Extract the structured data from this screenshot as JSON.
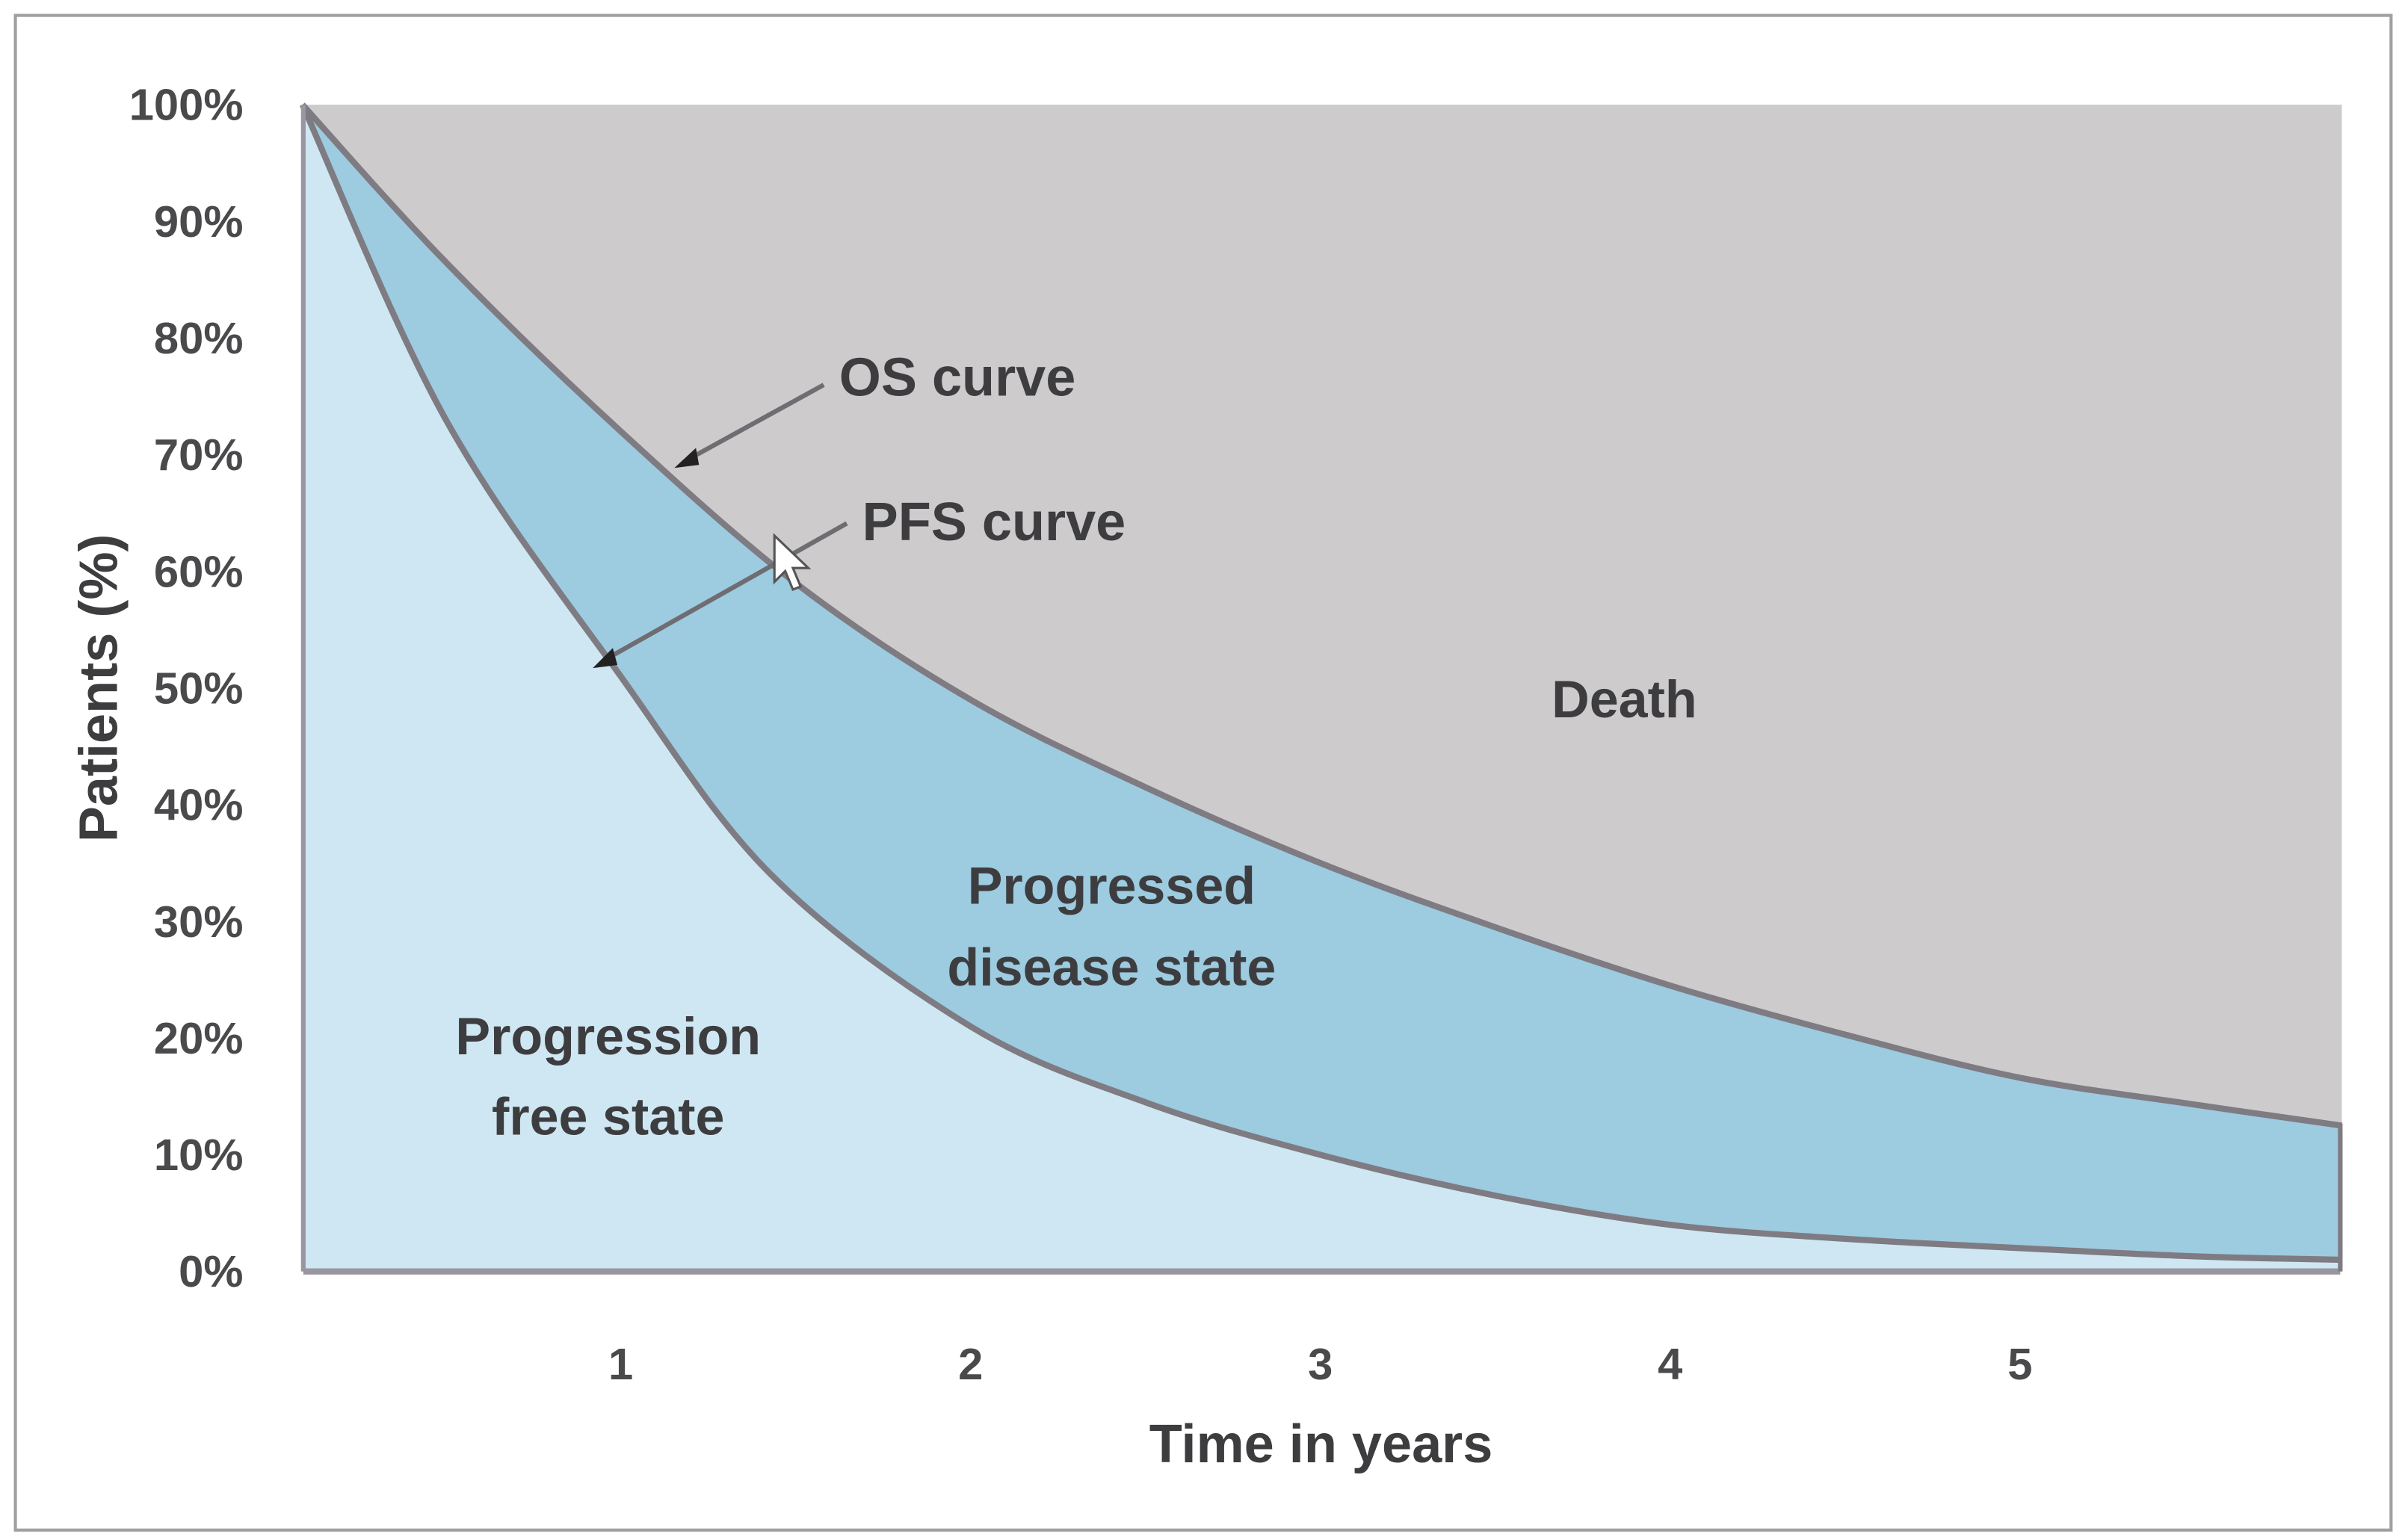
{
  "chart_data": {
    "type": "area",
    "title": "",
    "xlabel": "Time in years",
    "ylabel": "Patients (%)",
    "xlim": [
      0,
      5.92
    ],
    "ylim": [
      0,
      100
    ],
    "x_ticks": [
      1,
      2,
      3,
      4,
      5
    ],
    "y_ticks": [
      "0%",
      "10%",
      "20%",
      "30%",
      "40%",
      "50%",
      "60%",
      "70%",
      "80%",
      "90%",
      "100%"
    ],
    "grid": false,
    "series": [
      {
        "name": "OS curve",
        "x": [
          0.09,
          0.5,
          1,
          1.5,
          2,
          2.5,
          3,
          3.5,
          4,
          4.5,
          5,
          5.5,
          5.92
        ],
        "y": [
          100,
          86.5,
          72,
          59,
          49,
          41.5,
          35,
          29.5,
          24.5,
          20.3,
          16.6,
          14.3,
          12.5
        ]
      },
      {
        "name": "PFS curve",
        "x": [
          0.09,
          0.5,
          1,
          1.43,
          2,
          2.5,
          3,
          3.5,
          4,
          4.5,
          5,
          5.5,
          5.92
        ],
        "y": [
          100,
          73,
          51,
          34,
          21,
          14.5,
          10,
          6.5,
          4,
          2.8,
          2,
          1.3,
          1
        ]
      }
    ],
    "regions": {
      "death": "Death",
      "progressed": [
        "Progressed",
        "disease state"
      ],
      "progression_free": [
        "Progression",
        "free state"
      ]
    },
    "annotations": {
      "os": "OS curve",
      "pfs": "PFS curve"
    },
    "colors": {
      "death": "#cdcbcc",
      "progressed": "#9dcbe0",
      "progression_free": "#cfe7f2",
      "curve": "#7e7b82"
    }
  }
}
